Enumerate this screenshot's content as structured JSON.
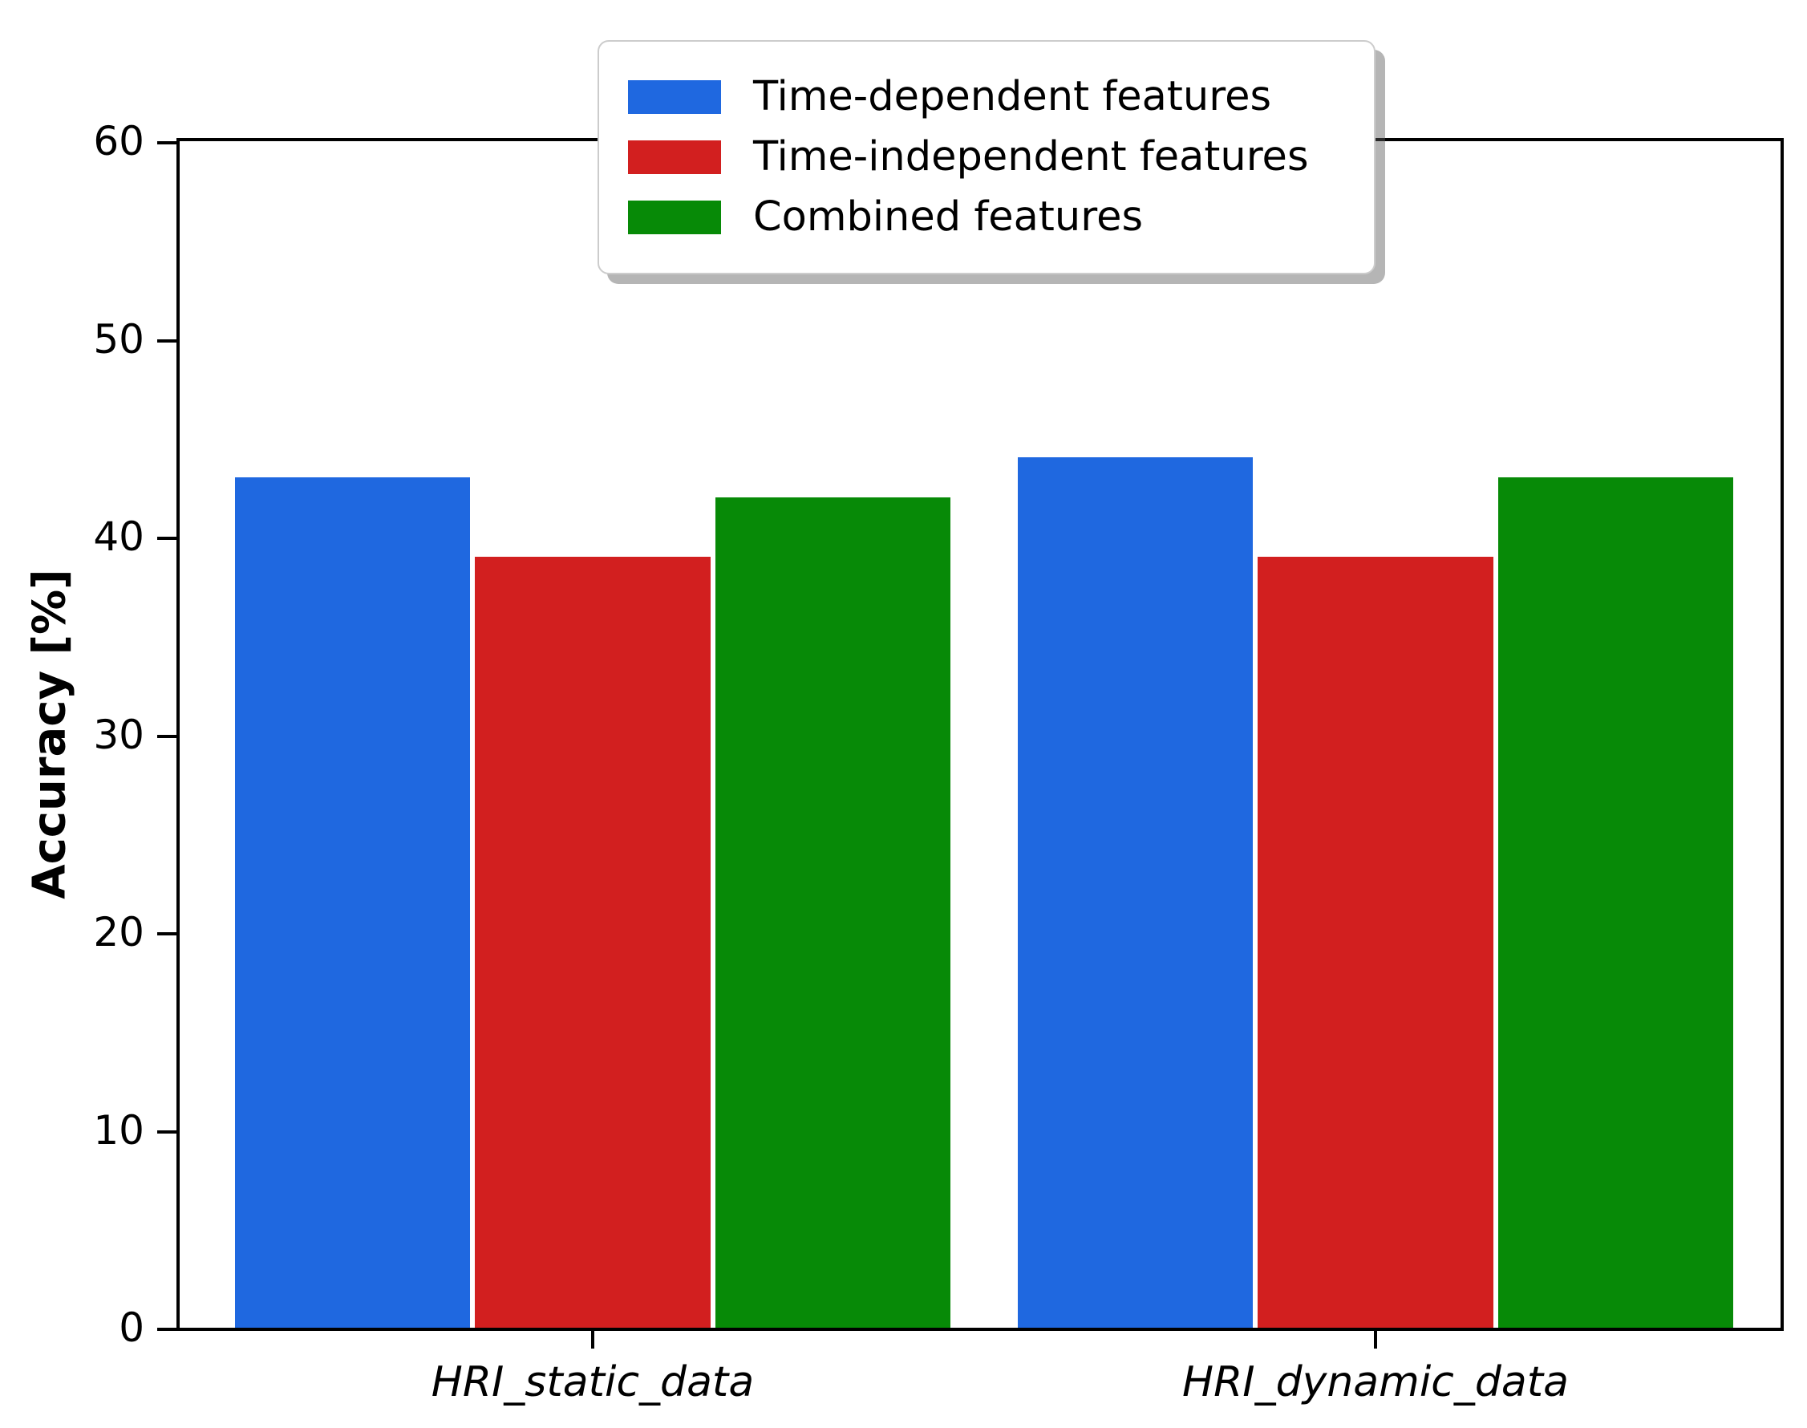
{
  "figure": {
    "background_color": "#ffffff",
    "axis_color": "#000000"
  },
  "chart_data": {
    "type": "bar",
    "title": "",
    "xlabel": "",
    "ylabel": "Accuracy [%]",
    "ylim": [
      0,
      60
    ],
    "yticks": [
      0,
      10,
      20,
      30,
      40,
      50,
      60
    ],
    "categories": [
      "HRI_static_data",
      "HRI_dynamic_data"
    ],
    "series": [
      {
        "name": "Time-dependent features",
        "color": "#1f68e0",
        "values": [
          43,
          44
        ]
      },
      {
        "name": "Time-independent features",
        "color": "#d21f1f",
        "values": [
          39,
          39
        ]
      },
      {
        "name": "Combined features",
        "color": "#078a07",
        "values": [
          42,
          43
        ]
      }
    ],
    "legend_position": "upper center",
    "legend_style": "fancybox with shadow",
    "grid": false,
    "x_tick_style": "italic"
  }
}
